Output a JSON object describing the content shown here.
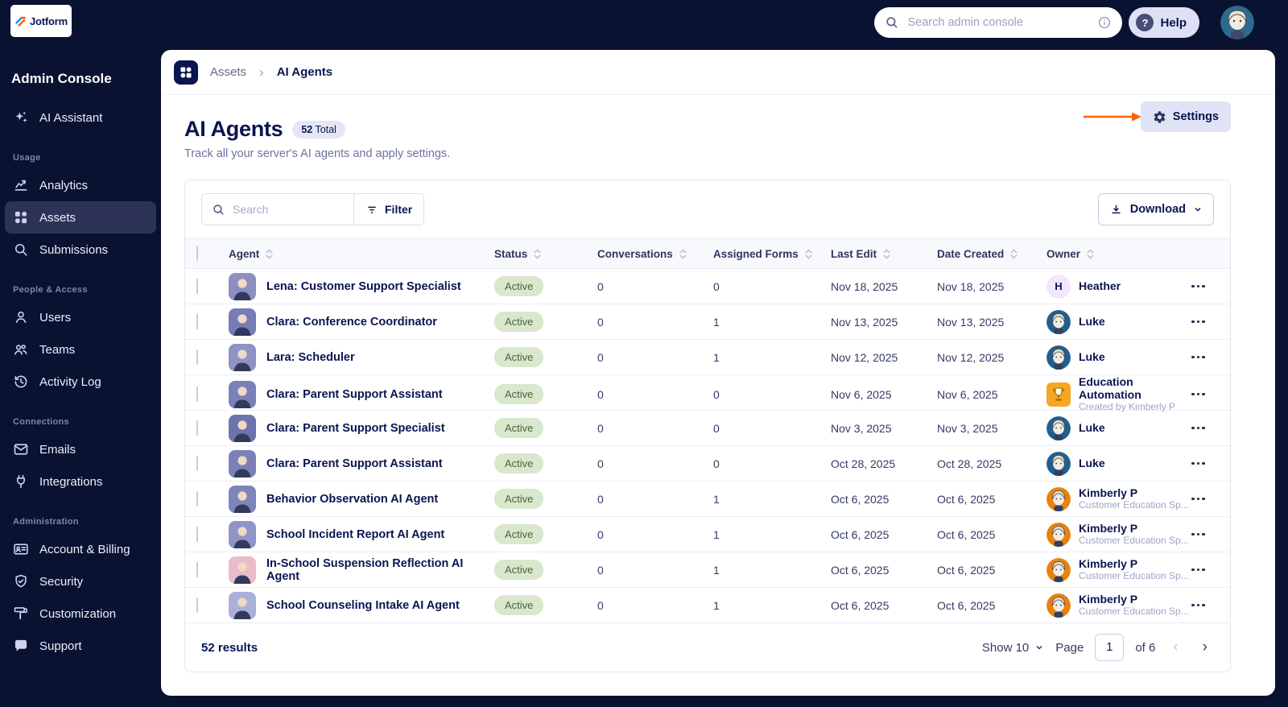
{
  "accent": {
    "navy": "#0a1551",
    "orange_arrow": "#ff6100",
    "active_green_bg": "#d9e7cd"
  },
  "topbar": {
    "search_placeholder": "Search admin console",
    "help_label": "Help"
  },
  "sidebar": {
    "logo_text": "Jotform",
    "title": "Admin Console",
    "sections": [
      {
        "label": "",
        "items": [
          {
            "label": "AI Assistant",
            "icon": "sparkles-icon",
            "active": false
          }
        ]
      },
      {
        "label": "Usage",
        "items": [
          {
            "label": "Analytics",
            "icon": "analytics-icon",
            "active": false
          },
          {
            "label": "Assets",
            "icon": "assets-icon",
            "active": true
          },
          {
            "label": "Submissions",
            "icon": "search-icon",
            "active": false
          }
        ]
      },
      {
        "label": "People & Access",
        "items": [
          {
            "label": "Users",
            "icon": "user-icon",
            "active": false
          },
          {
            "label": "Teams",
            "icon": "teams-icon",
            "active": false
          },
          {
            "label": "Activity Log",
            "icon": "activity-icon",
            "active": false
          }
        ]
      },
      {
        "label": "Connections",
        "items": [
          {
            "label": "Emails",
            "icon": "envelope-icon",
            "active": false
          },
          {
            "label": "Integrations",
            "icon": "plug-icon",
            "active": false
          }
        ]
      },
      {
        "label": "Administration",
        "items": [
          {
            "label": "Account & Billing",
            "icon": "card-icon",
            "active": false
          },
          {
            "label": "Security",
            "icon": "shield-icon",
            "active": false
          },
          {
            "label": "Customization",
            "icon": "roller-icon",
            "active": false
          },
          {
            "label": "Support",
            "icon": "support-icon",
            "active": false
          }
        ]
      }
    ]
  },
  "breadcrumb": {
    "parent": "Assets",
    "current": "AI Agents"
  },
  "page": {
    "title": "AI Agents",
    "total_count": "52",
    "total_word": "Total",
    "subtitle": "Track all your server's AI agents and apply settings.",
    "settings_label": "Settings"
  },
  "toolbar": {
    "search_placeholder": "Search",
    "filter_label": "Filter",
    "download_label": "Download"
  },
  "table": {
    "columns": [
      "Agent",
      "Status",
      "Conversations",
      "Assigned Forms",
      "Last Edit",
      "Date Created",
      "Owner"
    ],
    "rows": [
      {
        "agent": "Lena: Customer Support Specialist",
        "avatar_color": "#8b90c1",
        "status": "Active",
        "conversations": "0",
        "assigned_forms": "0",
        "last_edit": "Nov 18, 2025",
        "date_created": "Nov 18, 2025",
        "owner": {
          "type": "letter",
          "letter": "H",
          "name": "Heather",
          "subtitle": "",
          "color": "#f1e6fb"
        }
      },
      {
        "agent": "Clara: Conference Coordinator",
        "avatar_color": "#767cb4",
        "status": "Active",
        "conversations": "0",
        "assigned_forms": "1",
        "last_edit": "Nov 13, 2025",
        "date_created": "Nov 13, 2025",
        "owner": {
          "type": "face",
          "name": "Luke",
          "subtitle": "",
          "color": "#1f6091"
        }
      },
      {
        "agent": "Lara: Scheduler",
        "avatar_color": "#8e93c4",
        "status": "Active",
        "conversations": "0",
        "assigned_forms": "1",
        "last_edit": "Nov 12, 2025",
        "date_created": "Nov 12, 2025",
        "owner": {
          "type": "face",
          "name": "Luke",
          "subtitle": "",
          "color": "#1f6091"
        }
      },
      {
        "agent": "Clara: Parent Support Assistant",
        "avatar_color": "#7b81b8",
        "status": "Active",
        "conversations": "0",
        "assigned_forms": "0",
        "last_edit": "Nov 6, 2025",
        "date_created": "Nov 6, 2025",
        "owner": {
          "type": "trophy",
          "name": "Education Automation",
          "subtitle": "Created by Kimberly P",
          "color": "#f5a623"
        }
      },
      {
        "agent": "Clara: Parent Support Specialist",
        "avatar_color": "#6d73ac",
        "status": "Active",
        "conversations": "0",
        "assigned_forms": "0",
        "last_edit": "Nov 3, 2025",
        "date_created": "Nov 3, 2025",
        "owner": {
          "type": "face",
          "name": "Luke",
          "subtitle": "",
          "color": "#1f6091"
        }
      },
      {
        "agent": "Clara: Parent Support Assistant",
        "avatar_color": "#7b81b8",
        "status": "Active",
        "conversations": "0",
        "assigned_forms": "0",
        "last_edit": "Oct 28, 2025",
        "date_created": "Oct 28, 2025",
        "owner": {
          "type": "face",
          "name": "Luke",
          "subtitle": "",
          "color": "#1f6091"
        }
      },
      {
        "agent": "Behavior Observation AI Agent",
        "avatar_color": "#7f85bb",
        "status": "Active",
        "conversations": "0",
        "assigned_forms": "1",
        "last_edit": "Oct 6, 2025",
        "date_created": "Oct 6, 2025",
        "owner": {
          "type": "face",
          "name": "Kimberly P",
          "subtitle": "Customer Education Sp...",
          "color": "#e8820c"
        }
      },
      {
        "agent": "School Incident Report AI Agent",
        "avatar_color": "#9094c6",
        "status": "Active",
        "conversations": "0",
        "assigned_forms": "1",
        "last_edit": "Oct 6, 2025",
        "date_created": "Oct 6, 2025",
        "owner": {
          "type": "face",
          "name": "Kimberly P",
          "subtitle": "Customer Education Sp...",
          "color": "#e8820c"
        }
      },
      {
        "agent": "In-School Suspension Reflection AI Agent",
        "avatar_color": "#e9bcca",
        "status": "Active",
        "conversations": "0",
        "assigned_forms": "1",
        "last_edit": "Oct 6, 2025",
        "date_created": "Oct 6, 2025",
        "owner": {
          "type": "face",
          "name": "Kimberly P",
          "subtitle": "Customer Education Sp...",
          "color": "#e8820c"
        }
      },
      {
        "agent": "School Counseling Intake AI Agent",
        "avatar_color": "#aab0d8",
        "status": "Active",
        "conversations": "0",
        "assigned_forms": "1",
        "last_edit": "Oct 6, 2025",
        "date_created": "Oct 6, 2025",
        "owner": {
          "type": "face",
          "name": "Kimberly P",
          "subtitle": "Customer Education Sp...",
          "color": "#e8820c"
        }
      }
    ]
  },
  "footer": {
    "results": "52 results",
    "show_label": "Show 10",
    "page_label": "Page",
    "page_value": "1",
    "of_label": "of 6"
  }
}
